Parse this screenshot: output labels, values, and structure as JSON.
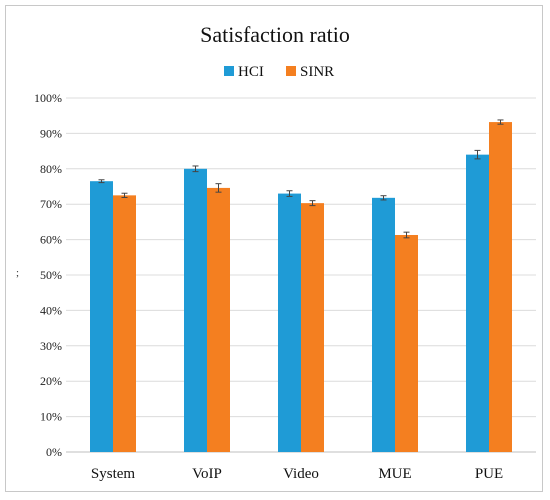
{
  "chart_data": {
    "type": "bar",
    "title": "Satisfaction ratio",
    "ylabel_mark": ";",
    "categories": [
      "System",
      "VoIP",
      "Video",
      "MUE",
      "PUE"
    ],
    "series": [
      {
        "name": "HCI",
        "color": "#1f9bd6",
        "values": [
          76.5,
          80.0,
          73.0,
          71.8,
          84.0
        ],
        "error": [
          0.4,
          0.8,
          0.8,
          0.6,
          1.2
        ]
      },
      {
        "name": "SINR",
        "color": "#f47f20",
        "values": [
          72.5,
          74.6,
          70.3,
          61.3,
          93.2
        ],
        "error": [
          0.6,
          1.2,
          0.7,
          0.8,
          0.6
        ]
      }
    ],
    "y_ticks": [
      "0%",
      "10%",
      "20%",
      "30%",
      "40%",
      "50%",
      "60%",
      "70%",
      "80%",
      "90%",
      "100%"
    ],
    "ylim": [
      0,
      100
    ],
    "legend_position": "top",
    "grid": true
  }
}
